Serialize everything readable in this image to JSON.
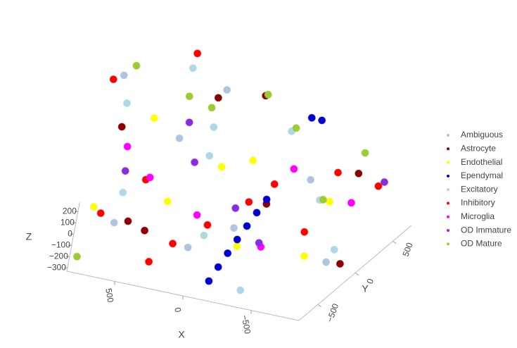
{
  "chart_data": {
    "type": "scatter3d",
    "xlim": [
      -850,
      850
    ],
    "ylim": [
      -750,
      750
    ],
    "zlim": [
      -330,
      280
    ],
    "x_label": "X",
    "y_label": "Y",
    "z_label": "Z",
    "xticks": [
      {
        "value": 500,
        "label": "500"
      },
      0,
      {
        "value": -500,
        "label": "−500"
      }
    ],
    "yticks": [
      {
        "value": -500,
        "label": "−500"
      },
      0,
      {
        "value": 500,
        "label": "500"
      }
    ],
    "zticks": [
      200,
      100,
      0,
      {
        "value": -100,
        "label": "−100"
      },
      {
        "value": -200,
        "label": "−200"
      },
      {
        "value": -300,
        "label": "−300"
      }
    ],
    "series": [
      {
        "name": "Ambiguous",
        "color": "#b0c4de",
        "x": [
          600,
          -400,
          200,
          -700,
          50,
          350,
          -150,
          750
        ],
        "y": [
          -500,
          300,
          600,
          -100,
          -650,
          100,
          -300,
          450
        ],
        "z": [
          -100,
          50,
          200,
          -250,
          0,
          150,
          -50,
          100
        ]
      },
      {
        "name": "Astrocyte",
        "color": "#8b0000",
        "x": [
          -600,
          400,
          0,
          700,
          -300,
          250,
          -750,
          500
        ],
        "y": [
          500,
          -400,
          650,
          200,
          -200,
          700,
          0,
          -600
        ],
        "z": [
          100,
          -200,
          250,
          -50,
          150,
          0,
          -300,
          50
        ]
      },
      {
        "name": "Endothelial",
        "color": "#ffff00",
        "x": [
          300,
          -500,
          750,
          -100,
          550,
          -700,
          100,
          -300
        ],
        "y": [
          -300,
          400,
          -600,
          100,
          550,
          -500,
          250,
          -700
        ],
        "z": [
          0,
          -150,
          100,
          200,
          -250,
          50,
          -100,
          150
        ]
      },
      {
        "name": "Ependymal",
        "color": "#0000cd",
        "x": [
          -150,
          -170,
          -190,
          -210,
          -230,
          -250,
          -270,
          -250,
          -300
        ],
        "y": [
          -700,
          -600,
          -500,
          -400,
          -300,
          -200,
          -100,
          700,
          720
        ],
        "z": [
          -200,
          -150,
          -100,
          -50,
          0,
          50,
          100,
          200,
          200
        ]
      },
      {
        "name": "Excitatory",
        "color": "#add8e6",
        "x": [
          -500,
          200,
          600,
          -200,
          0,
          400,
          -700,
          700,
          -350,
          150
        ],
        "y": [
          200,
          350,
          -200,
          500,
          -450,
          600,
          0,
          300,
          -600,
          50
        ],
        "z": [
          0,
          100,
          -150,
          200,
          -50,
          250,
          -200,
          50,
          -300,
          150
        ]
      },
      {
        "name": "Inhibitory",
        "color": "#ff0000",
        "x": [
          700,
          -600,
          300,
          -300,
          0,
          500,
          -750,
          150,
          -450,
          800,
          -100,
          400
        ],
        "y": [
          -500,
          -300,
          -650,
          -100,
          -400,
          100,
          400,
          -700,
          650,
          300,
          200,
          700
        ],
        "z": [
          -50,
          100,
          -200,
          250,
          0,
          -300,
          150,
          50,
          -100,
          200,
          -250,
          280
        ]
      },
      {
        "name": "Microglia",
        "color": "#ff00ff",
        "x": [
          450,
          -250,
          50,
          -650,
          650,
          -450
        ],
        "y": [
          -200,
          500,
          -550,
          300,
          250,
          -650
        ],
        "z": [
          50,
          -100,
          200,
          0,
          -250,
          150
        ]
      },
      {
        "name": "OD Immature",
        "color": "#8a2be2",
        "x": [
          -400,
          350,
          -50,
          600,
          -700,
          200
        ],
        "y": [
          -550,
          450,
          100,
          -350,
          650,
          -150
        ],
        "z": [
          100,
          -50,
          -250,
          200,
          0,
          250
        ]
      },
      {
        "name": "OD Mature",
        "color": "#9acd32",
        "x": [
          -200,
          400,
          -600,
          700,
          0,
          -450,
          250,
          800
        ],
        "y": [
          600,
          700,
          550,
          650,
          720,
          450,
          500,
          -650
        ],
        "z": [
          150,
          -100,
          250,
          0,
          200,
          -200,
          100,
          -300
        ]
      }
    ]
  }
}
